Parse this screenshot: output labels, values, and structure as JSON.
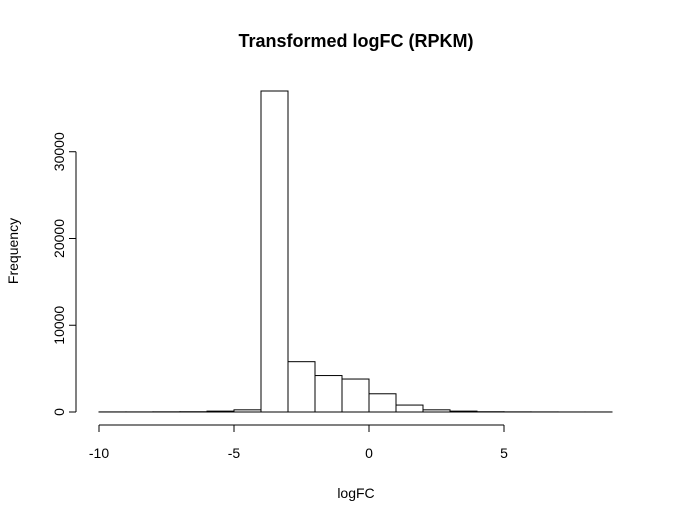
{
  "chart_data": {
    "type": "histogram",
    "title": "Transformed logFC (RPKM)",
    "xlabel": "logFC",
    "ylabel": "Frequency",
    "xlim": [
      -10,
      9
    ],
    "ylim": [
      0,
      37000
    ],
    "x_ticks": [
      -10,
      -5,
      0,
      5
    ],
    "x_tick_labels": [
      "-10",
      "-5",
      "0",
      "5"
    ],
    "y_ticks": [
      0,
      10000,
      20000,
      30000
    ],
    "y_tick_labels": [
      "0",
      "10000",
      "20000",
      "30000"
    ],
    "grid": false,
    "bin_width": 1,
    "bins": [
      {
        "x0": -10,
        "x1": -9,
        "count": 10
      },
      {
        "x0": -9,
        "x1": -8,
        "count": 10
      },
      {
        "x0": -8,
        "x1": -7,
        "count": 20
      },
      {
        "x0": -7,
        "x1": -6,
        "count": 30
      },
      {
        "x0": -6,
        "x1": -5,
        "count": 100
      },
      {
        "x0": -5,
        "x1": -4,
        "count": 250
      },
      {
        "x0": -4,
        "x1": -3,
        "count": 37000
      },
      {
        "x0": -3,
        "x1": -2,
        "count": 5800
      },
      {
        "x0": -2,
        "x1": -1,
        "count": 4200
      },
      {
        "x0": -1,
        "x1": 0,
        "count": 3800
      },
      {
        "x0": 0,
        "x1": 1,
        "count": 2100
      },
      {
        "x0": 1,
        "x1": 2,
        "count": 800
      },
      {
        "x0": 2,
        "x1": 3,
        "count": 250
      },
      {
        "x0": 3,
        "x1": 4,
        "count": 100
      },
      {
        "x0": 4,
        "x1": 5,
        "count": 30
      },
      {
        "x0": 5,
        "x1": 6,
        "count": 15
      },
      {
        "x0": 6,
        "x1": 7,
        "count": 10
      },
      {
        "x0": 7,
        "x1": 8,
        "count": 5
      },
      {
        "x0": 8,
        "x1": 9,
        "count": 5
      }
    ]
  }
}
